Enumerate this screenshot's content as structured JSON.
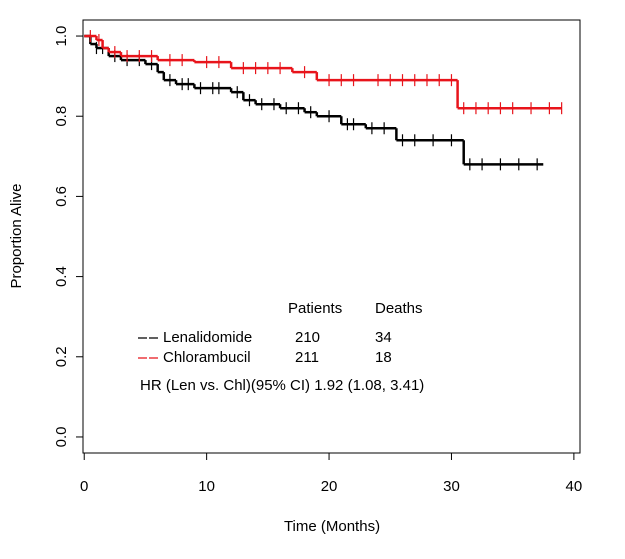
{
  "chart_data": {
    "type": "km",
    "x_label": "Time (Months)",
    "y_label": "Proportion Alive",
    "xlim": [
      -0.1,
      40.5
    ],
    "ylim": [
      -0.04,
      1.04
    ],
    "xticks": [
      0,
      10,
      20,
      30,
      40
    ],
    "yticks": [
      {
        "value": 0,
        "label": "0.0"
      },
      0.2,
      0.4,
      0.6,
      0.8,
      {
        "value": 1,
        "label": "1.0"
      }
    ],
    "table_headers": [
      "Patients",
      "Deaths"
    ],
    "hr_text": "HR  (Len vs. Chl)(95% CI) 1.92 (1.08, 3.41)",
    "series": [
      {
        "name": "Lenalidomide",
        "color": "#000000",
        "patients": 210,
        "deaths": 34,
        "x": [
          0,
          0.5,
          1,
          2,
          3,
          5,
          6,
          6.5,
          7.5,
          9,
          12,
          13,
          14,
          16,
          18,
          19,
          21,
          23,
          25.5,
          31,
          37.5
        ],
        "values": [
          1,
          0.98,
          0.97,
          0.95,
          0.94,
          0.93,
          0.91,
          0.89,
          0.88,
          0.87,
          0.86,
          0.84,
          0.83,
          0.82,
          0.81,
          0.8,
          0.78,
          0.77,
          0.74,
          0.68,
          0.68
        ],
        "censored": {
          "x": [
            1,
            1.5,
            2.5,
            3.5,
            4.5,
            5.5,
            7,
            8,
            8.5,
            9.5,
            10.5,
            11,
            12.5,
            13.5,
            14.5,
            15.5,
            16.5,
            17.5,
            18.5,
            20,
            21.5,
            22,
            23.5,
            24.5,
            26,
            27,
            28.5,
            30,
            31.5,
            32.5,
            34,
            35.5,
            37
          ],
          "y": [
            0.97,
            0.97,
            0.95,
            0.94,
            0.94,
            0.93,
            0.89,
            0.88,
            0.88,
            0.87,
            0.87,
            0.87,
            0.86,
            0.84,
            0.83,
            0.83,
            0.82,
            0.82,
            0.81,
            0.8,
            0.78,
            0.78,
            0.77,
            0.77,
            0.74,
            0.74,
            0.74,
            0.74,
            0.68,
            0.68,
            0.68,
            0.68,
            0.68
          ]
        }
      },
      {
        "name": "Chlorambucil",
        "color": "#e8141b",
        "patients": 211,
        "deaths": 18,
        "x": [
          0,
          1,
          1.5,
          2,
          3,
          6,
          9,
          12,
          17,
          19,
          30.5,
          39
        ],
        "values": [
          1,
          0.99,
          0.97,
          0.96,
          0.95,
          0.94,
          0.935,
          0.92,
          0.91,
          0.89,
          0.82,
          0.82
        ],
        "censored": {
          "x": [
            0.5,
            1.2,
            2.5,
            3.5,
            4.5,
            5.5,
            7,
            8,
            10,
            11,
            13,
            14,
            15,
            16,
            18,
            20,
            21,
            22,
            24,
            25,
            26,
            27,
            28,
            29,
            30,
            31,
            32,
            33,
            34,
            35,
            36.5,
            38,
            39
          ],
          "y": [
            1,
            0.99,
            0.96,
            0.95,
            0.95,
            0.95,
            0.94,
            0.94,
            0.935,
            0.935,
            0.92,
            0.92,
            0.92,
            0.92,
            0.91,
            0.89,
            0.89,
            0.89,
            0.89,
            0.89,
            0.89,
            0.89,
            0.89,
            0.89,
            0.89,
            0.82,
            0.82,
            0.82,
            0.82,
            0.82,
            0.82,
            0.82,
            0.82
          ]
        }
      }
    ]
  }
}
